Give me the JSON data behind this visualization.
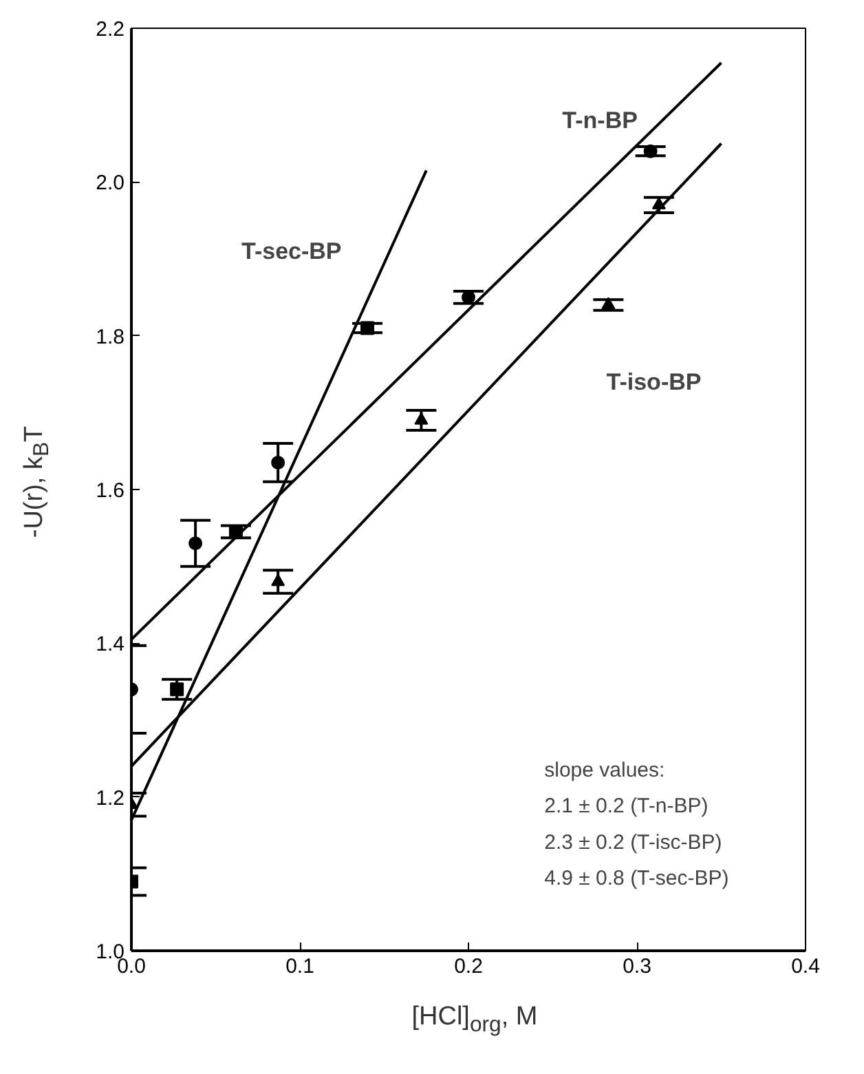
{
  "chart_data": {
    "type": "scatter",
    "xlabel": "[HCl]$_{org}$, M",
    "ylabel": "-U(r), k$_{B}$T",
    "xlim": [
      0,
      0.4
    ],
    "ylim": [
      1.0,
      2.2
    ],
    "xticks": [
      {
        "value": 0,
        "label": "0.0"
      },
      {
        "value": 0.1,
        "label": "0.1"
      },
      {
        "value": 0.2,
        "label": "0.2"
      },
      {
        "value": 0.3,
        "label": "0.3"
      },
      {
        "value": 0.4,
        "label": "0.4"
      }
    ],
    "yticks": [
      {
        "value": 1.0,
        "label": "1.0"
      },
      {
        "value": 1.2,
        "label": "1.2"
      },
      {
        "value": 1.4,
        "label": "1.4"
      },
      {
        "value": 1.6,
        "label": "1.6"
      },
      {
        "value": 1.8,
        "label": "1.8"
      },
      {
        "value": 2.0,
        "label": "2.0"
      },
      {
        "value": 2.2,
        "label": "2.2"
      }
    ],
    "grid": false,
    "series": [
      {
        "name": "T-n-BP",
        "color": "#000000",
        "marker": "circle",
        "x": [
          0,
          0.038,
          0.087,
          0.2,
          0.308
        ],
        "values": [
          1.34,
          1.53,
          1.635,
          1.85,
          2.04
        ],
        "errors": [
          0.057,
          0.03,
          0.025,
          0.008,
          0.006
        ]
      },
      {
        "name": "T-sec-BP",
        "color": "#000000",
        "marker": "square",
        "x": [
          0,
          0.027,
          0.062,
          0.14
        ],
        "values": [
          1.09,
          1.34,
          1.545,
          1.81
        ],
        "errors": [
          0.018,
          0.013,
          0.008,
          0.006
        ]
      },
      {
        "name": "T-iso-BP",
        "color": "#000000",
        "marker": "triangle",
        "x": [
          0,
          0.087,
          0.172,
          0.283,
          0.313
        ],
        "values": [
          1.19,
          1.48,
          1.69,
          1.84,
          1.97
        ],
        "errors": [
          0.015,
          0.015,
          0.013,
          0.007,
          0.01
        ]
      },
      {
        "type": "line",
        "color": "#000000",
        "line_style": "solid",
        "marker": "none",
        "x": [
          0,
          0.35
        ],
        "values": [
          1.405,
          2.155
        ]
      },
      {
        "type": "line",
        "color": "#000000",
        "line_style": "solid",
        "marker": "none",
        "x": [
          0,
          0.35
        ],
        "values": [
          1.24,
          2.05
        ]
      },
      {
        "type": "line",
        "color": "#000000",
        "line_style": "solid",
        "marker": "none",
        "x": [
          0,
          0.175
        ],
        "values": [
          1.17,
          2.015
        ]
      }
    ],
    "annotations": [
      "slope values:",
      "2.1 ± 0.2 (T-n-BP)",
      "2.3 ± 0.2 (T-isc-BP)",
      "4.9 ± 0.8 (T-sec-BP)"
    ]
  }
}
